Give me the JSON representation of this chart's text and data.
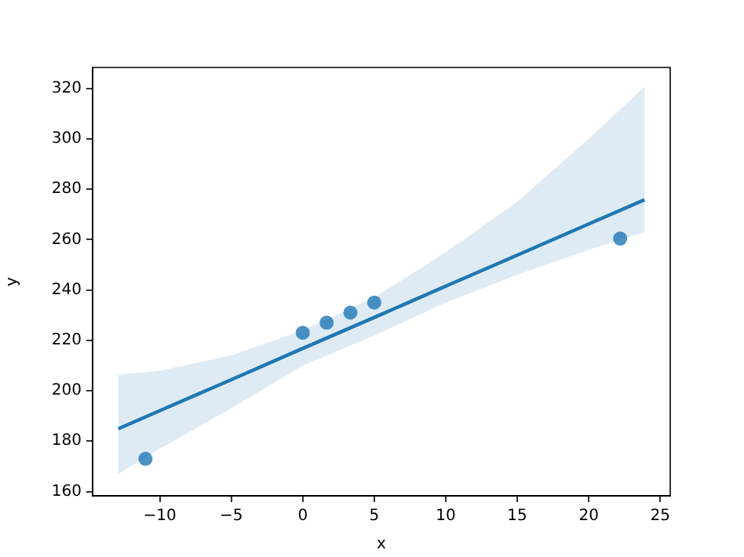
{
  "chart_data": {
    "type": "scatter",
    "xlabel": "x",
    "ylabel": "y",
    "xlim": [
      -14.7,
      25.7
    ],
    "ylim": [
      158.3,
      328.3
    ],
    "xticks": [
      -10,
      -5,
      0,
      5,
      10,
      15,
      20,
      25
    ],
    "yticks": [
      160,
      180,
      200,
      220,
      240,
      260,
      280,
      300,
      320
    ],
    "grid": false,
    "series": [
      {
        "color": "#1f77b4",
        "marker": "circle",
        "x": [
          -11,
          0,
          1.67,
          3.33,
          5,
          22.2
        ],
        "values": [
          173,
          223,
          227,
          231,
          235,
          260.4
        ]
      },
      {
        "type": "line",
        "color": "#1f77b4",
        "x": [
          -12.9,
          -10,
          -5,
          0,
          5,
          10,
          15,
          20,
          23.9
        ],
        "values": [
          184.9,
          192.1,
          204.4,
          216.8,
          229.1,
          241.5,
          253.8,
          266.2,
          275.8
        ],
        "lower": [
          167,
          177,
          193,
          210,
          222,
          235,
          246,
          256,
          262.9
        ],
        "upper": [
          206.3,
          208,
          214,
          224,
          237,
          255,
          275,
          300,
          320.6
        ]
      }
    ]
  }
}
